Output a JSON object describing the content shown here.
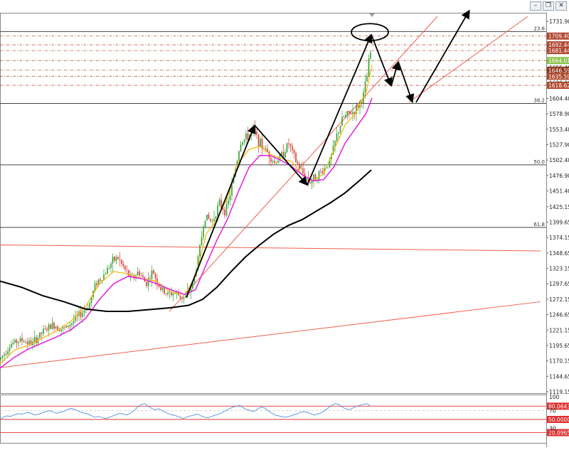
{
  "window": {
    "buttons": [
      {
        "name": "minimize",
        "glyph": "–"
      },
      {
        "name": "restore",
        "glyph": "❐"
      },
      {
        "name": "close",
        "glyph": "✕"
      }
    ]
  },
  "chart_data": [
    {
      "type": "candlestick",
      "price_axis": {
        "min": 1119.15,
        "max": 1731.9,
        "tick_labels": [
          "1731.90",
          "1706.40",
          "1681.44",
          "1655.40",
          "1629.90",
          "1604.40",
          "1578.90",
          "1553.40",
          "1527.90",
          "1502.40",
          "1476.90",
          "1451.40",
          "1425.15",
          "1399.65",
          "1374.15",
          "1348.65",
          "1323.15",
          "1297.65",
          "1272.15",
          "1246.65",
          "1221.15",
          "1195.65",
          "1170.15",
          "1144.65",
          "1119.15"
        ]
      },
      "fibonacci_levels": [
        {
          "ratio": "23.6",
          "price": 1715.0
        },
        {
          "ratio": "38.2",
          "price": 1596.0
        },
        {
          "ratio": "50.0",
          "price": 1494.5
        },
        {
          "ratio": "61.8",
          "price": 1391.0
        }
      ],
      "price_labels": [
        {
          "text": "1709.40",
          "price": 1707.5,
          "color": "#b04a32"
        },
        {
          "text": "1692.44",
          "price": 1693.0,
          "color": "#b04a32"
        },
        {
          "text": "1681.44",
          "price": 1683.5,
          "color": "#b04a32"
        },
        {
          "text": "1664.01",
          "price": 1667.0,
          "color": "#8bc34a"
        },
        {
          "text": "1646.59",
          "price": 1651.0,
          "color": "#8d3b22"
        },
        {
          "text": "1635.59",
          "price": 1641.0,
          "color": "#b04a32"
        },
        {
          "text": "1618.62",
          "price": 1626.0,
          "color": "#b04a32"
        }
      ],
      "horizontal_levels": [
        1707.5,
        1693.0,
        1683.5,
        1667.0,
        1651.0,
        1641.0,
        1626.0
      ],
      "price_path": [
        [
          0,
          1173
        ],
        [
          15,
          1198
        ],
        [
          30,
          1205
        ],
        [
          45,
          1198
        ],
        [
          60,
          1218
        ],
        [
          75,
          1230
        ],
        [
          90,
          1222
        ],
        [
          105,
          1238
        ],
        [
          115,
          1250
        ],
        [
          125,
          1262
        ],
        [
          135,
          1300
        ],
        [
          145,
          1310
        ],
        [
          155,
          1330
        ],
        [
          165,
          1342
        ],
        [
          175,
          1322
        ],
        [
          185,
          1305
        ],
        [
          195,
          1318
        ],
        [
          205,
          1298
        ],
        [
          215,
          1318
        ],
        [
          225,
          1290
        ],
        [
          235,
          1280
        ],
        [
          245,
          1283
        ],
        [
          255,
          1276
        ],
        [
          262,
          1275
        ],
        [
          272,
          1300
        ],
        [
          280,
          1350
        ],
        [
          288,
          1410
        ],
        [
          298,
          1400
        ],
        [
          308,
          1430
        ],
        [
          318,
          1418
        ],
        [
          328,
          1470
        ],
        [
          338,
          1532
        ],
        [
          348,
          1540
        ],
        [
          356,
          1552
        ],
        [
          366,
          1528
        ],
        [
          376,
          1516
        ],
        [
          386,
          1498
        ],
        [
          396,
          1510
        ],
        [
          406,
          1530
        ],
        [
          416,
          1500
        ],
        [
          426,
          1480
        ],
        [
          434,
          1466
        ],
        [
          444,
          1474
        ],
        [
          454,
          1486
        ],
        [
          464,
          1500
        ],
        [
          474,
          1545
        ],
        [
          482,
          1572
        ],
        [
          490,
          1578
        ],
        [
          500,
          1585
        ],
        [
          510,
          1605
        ],
        [
          516,
          1640
        ],
        [
          520,
          1680
        ]
      ],
      "moving_averages": [
        {
          "color": "#f2b705",
          "width": 1.2,
          "points": [
            [
              0,
              1165
            ],
            [
              20,
              1188
            ],
            [
              40,
              1196
            ],
            [
              60,
              1208
            ],
            [
              80,
              1220
            ],
            [
              100,
              1236
            ],
            [
              120,
              1260
            ],
            [
              140,
              1298
            ],
            [
              160,
              1318
            ],
            [
              180,
              1314
            ],
            [
              200,
              1306
            ],
            [
              220,
              1302
            ],
            [
              240,
              1284
            ],
            [
              260,
              1280
            ],
            [
              275,
              1310
            ],
            [
              290,
              1380
            ],
            [
              305,
              1405
            ],
            [
              320,
              1440
            ],
            [
              335,
              1498
            ],
            [
              350,
              1520
            ],
            [
              365,
              1525
            ],
            [
              380,
              1512
            ],
            [
              395,
              1505
            ],
            [
              410,
              1500
            ],
            [
              425,
              1478
            ],
            [
              440,
              1468
            ],
            [
              455,
              1480
            ],
            [
              470,
              1520
            ],
            [
              485,
              1560
            ],
            [
              500,
              1580
            ],
            [
              515,
              1615
            ],
            [
              523,
              1660
            ]
          ]
        },
        {
          "color": "#e21fe0",
          "width": 1.5,
          "points": [
            [
              0,
              1158
            ],
            [
              20,
              1176
            ],
            [
              40,
              1190
            ],
            [
              60,
              1200
            ],
            [
              80,
              1210
            ],
            [
              100,
              1222
            ],
            [
              120,
              1240
            ],
            [
              140,
              1272
            ],
            [
              160,
              1298
            ],
            [
              180,
              1310
            ],
            [
              200,
              1306
            ],
            [
              220,
              1298
            ],
            [
              240,
              1288
            ],
            [
              260,
              1280
            ],
            [
              275,
              1288
            ],
            [
              290,
              1330
            ],
            [
              305,
              1370
            ],
            [
              320,
              1405
            ],
            [
              335,
              1450
            ],
            [
              350,
              1490
            ],
            [
              365,
              1510
            ],
            [
              380,
              1510
            ],
            [
              395,
              1502
            ],
            [
              410,
              1492
            ],
            [
              425,
              1478
            ],
            [
              440,
              1468
            ],
            [
              455,
              1470
            ],
            [
              470,
              1492
            ],
            [
              485,
              1530
            ],
            [
              500,
              1555
            ],
            [
              515,
              1580
            ],
            [
              523,
              1605
            ]
          ]
        },
        {
          "color": "#000000",
          "width": 2,
          "points": [
            [
              0,
              1302
            ],
            [
              30,
              1292
            ],
            [
              60,
              1278
            ],
            [
              90,
              1268
            ],
            [
              120,
              1256
            ],
            [
              150,
              1252
            ],
            [
              180,
              1252
            ],
            [
              210,
              1255
            ],
            [
              240,
              1258
            ],
            [
              265,
              1262
            ],
            [
              285,
              1272
            ],
            [
              305,
              1292
            ],
            [
              325,
              1318
            ],
            [
              345,
              1342
            ],
            [
              365,
              1362
            ],
            [
              385,
              1380
            ],
            [
              405,
              1394
            ],
            [
              425,
              1404
            ],
            [
              445,
              1418
            ],
            [
              465,
              1432
            ],
            [
              485,
              1448
            ],
            [
              505,
              1468
            ],
            [
              522,
              1486
            ]
          ]
        }
      ],
      "trendlines": [
        {
          "color": "#f06050",
          "from": [
            0,
            1159
          ],
          "to": [
            760,
            1268
          ]
        },
        {
          "color": "#f06050",
          "from": [
            0,
            1362
          ],
          "to": [
            760,
            1352
          ]
        },
        {
          "color": "#f06050",
          "from": [
            238,
            1252
          ],
          "to": [
            615,
            1740
          ]
        },
        {
          "color": "#f06050",
          "from": [
            575,
            1598
          ],
          "to": [
            742,
            1740
          ]
        }
      ],
      "arrows": [
        {
          "color": "#000000",
          "points": [
            [
              262,
              1275
            ],
            [
              358,
              1560
            ]
          ]
        },
        {
          "color": "#000000",
          "points": [
            [
              358,
              1560
            ],
            [
              432,
              1461
            ]
          ]
        },
        {
          "color": "#000000",
          "points": [
            [
              432,
              1461
            ],
            [
              522,
              1710
            ]
          ]
        },
        {
          "color": "#000000",
          "points": [
            [
              522,
              1710
            ],
            [
              550,
              1625
            ]
          ]
        },
        {
          "color": "#000000",
          "points": [
            [
              550,
              1625
            ],
            [
              560,
              1665
            ]
          ]
        },
        {
          "color": "#000000",
          "points": [
            [
              560,
              1665
            ],
            [
              580,
              1598
            ]
          ]
        },
        {
          "color": "#000000",
          "points": [
            [
              585,
              1598
            ],
            [
              660,
              1750
            ]
          ]
        }
      ],
      "highlight_ellipse": {
        "cx": 520,
        "cy_price": 1714,
        "rx": 26,
        "ry": 12
      }
    },
    {
      "type": "line",
      "indicator": "oscillator",
      "y_range": [
        30,
        100
      ],
      "tick_labels": [
        "100",
        "70",
        "30"
      ],
      "levels": [
        {
          "value": 80.0643,
          "label": "80.0643",
          "color": "#e03030"
        },
        {
          "value": 50.0,
          "label": "50.0000",
          "color": "#e03030"
        },
        {
          "value": 20.0965,
          "label": "20.0965",
          "color": "#e03030"
        }
      ],
      "series_color": "#4a90e2",
      "values": [
        50,
        55,
        58,
        57,
        60,
        63,
        62,
        64,
        66,
        63,
        60,
        62,
        65,
        68,
        70,
        67,
        64,
        66,
        68,
        72,
        75,
        73,
        70,
        66,
        64,
        62,
        58,
        55,
        57,
        54,
        52,
        55,
        58,
        61,
        64,
        62,
        60,
        65,
        70,
        78,
        84,
        86,
        80,
        75,
        72,
        74,
        70,
        66,
        62,
        60,
        58,
        55,
        52,
        56,
        58,
        60,
        62,
        58,
        55,
        54,
        57,
        60,
        62,
        66,
        70,
        74,
        78,
        80,
        82,
        76,
        72,
        70,
        68,
        74,
        78,
        76,
        70,
        64,
        60,
        58,
        56,
        55,
        57,
        60,
        62,
        66,
        68,
        66,
        63,
        60,
        62,
        65,
        70,
        76,
        82,
        86,
        84,
        78,
        74,
        72,
        76,
        80,
        82,
        84,
        86,
        80
      ]
    }
  ]
}
